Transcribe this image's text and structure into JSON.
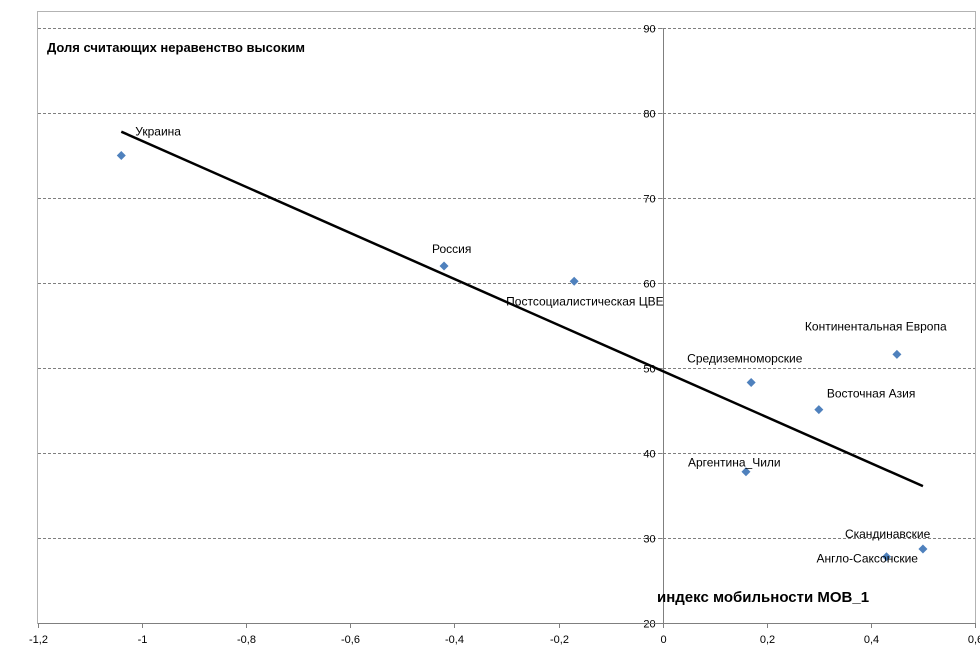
{
  "chart_data": {
    "type": "scatter",
    "title": "Доля считающих неравенство высоким",
    "xlabel": "индекс мобильности МОВ_1",
    "ylabel": "",
    "xlim": [
      -1.2,
      0.6
    ],
    "ylim": [
      20,
      90
    ],
    "x_ticks": [
      "-1,2",
      "-1",
      "-0,8",
      "-0,6",
      "-0,4",
      "-0,2",
      "0",
      "0,2",
      "0,4",
      "0,6"
    ],
    "x_tick_values": [
      -1.2,
      -1.0,
      -0.8,
      -0.6,
      -0.4,
      -0.2,
      0,
      0.2,
      0.4,
      0.6
    ],
    "y_ticks": [
      "20",
      "30",
      "40",
      "50",
      "60",
      "70",
      "80",
      "90"
    ],
    "y_tick_values": [
      20,
      30,
      40,
      50,
      60,
      70,
      80,
      90
    ],
    "grid": "horizontal-dashed",
    "marker_color": "#4f81bd",
    "trendline_color": "#000000",
    "points": [
      {
        "label": "Украина",
        "x": -1.04,
        "y": 75.0
      },
      {
        "label": "Россия",
        "x": -0.42,
        "y": 62.0
      },
      {
        "label": "Постсоциалистическая ЦВЕ",
        "x": -0.17,
        "y": 60.2
      },
      {
        "label": "Средиземноморские",
        "x": 0.17,
        "y": 48.3
      },
      {
        "label": "Континентальная Европа",
        "x": 0.45,
        "y": 51.6
      },
      {
        "label": "Восточная Азия",
        "x": 0.3,
        "y": 45.1
      },
      {
        "label": "Аргентина_Чили",
        "x": 0.16,
        "y": 37.8
      },
      {
        "label": "Скандинавские",
        "x": 0.5,
        "y": 28.7
      },
      {
        "label": "Англо-Саксонские",
        "x": 0.43,
        "y": 27.8
      }
    ],
    "trendline": {
      "x": [
        -1.04,
        0.5
      ],
      "y": [
        77.8,
        36.1
      ]
    }
  }
}
